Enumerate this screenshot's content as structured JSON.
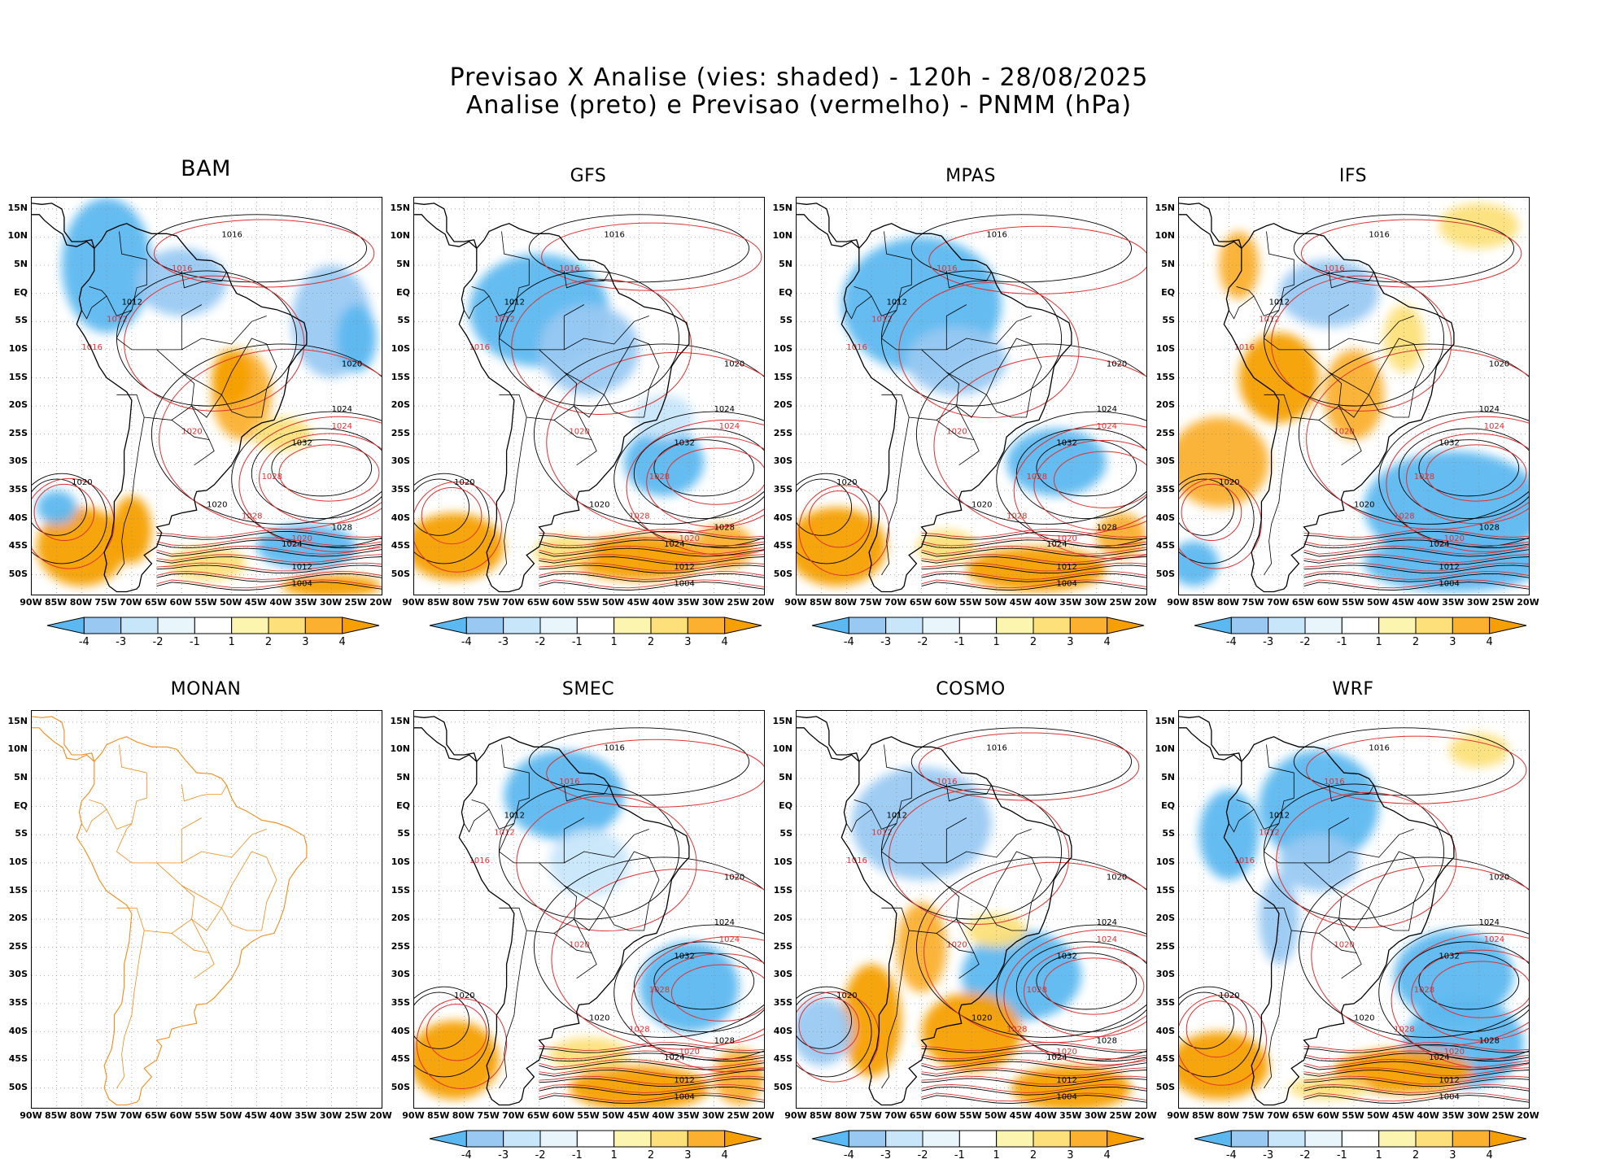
{
  "title": {
    "line1": "Previsao X Analise (vies: shaded) - 120h - 28/08/2025",
    "line2": "Analise (preto) e Previsao (vermelho) - PNMM (hPa)"
  },
  "panels": [
    {
      "name": "BAM",
      "pattern": "bam",
      "empty": false
    },
    {
      "name": "GFS",
      "pattern": "gfs",
      "empty": false
    },
    {
      "name": "MPAS",
      "pattern": "mpas",
      "empty": false
    },
    {
      "name": "IFS",
      "pattern": "ifs",
      "empty": false
    },
    {
      "name": "MONAN",
      "pattern": "none",
      "empty": true
    },
    {
      "name": "SMEC",
      "pattern": "smec",
      "empty": false
    },
    {
      "name": "COSMO",
      "pattern": "cosmo",
      "empty": false
    },
    {
      "name": "WRF",
      "pattern": "wrf",
      "empty": false
    }
  ],
  "lat_labels": [
    "15N",
    "10N",
    "5N",
    "EQ",
    "5S",
    "10S",
    "15S",
    "20S",
    "25S",
    "30S",
    "35S",
    "40S",
    "45S",
    "50S"
  ],
  "lon_labels": [
    "90W",
    "85W",
    "80W",
    "75W",
    "70W",
    "65W",
    "60W",
    "55W",
    "50W",
    "45W",
    "40W",
    "35W",
    "30W",
    "25W",
    "20W"
  ],
  "colorbar": {
    "labels": [
      "-4",
      "-3",
      "-2",
      "-1",
      "1",
      "2",
      "3",
      "4"
    ],
    "colors": [
      "#5cb8f0",
      "#99c9f2",
      "#c8e6fa",
      "#e8f6fc",
      "#ffffff",
      "#fbf5b0",
      "#fde07a",
      "#fbb030",
      "#f5a000"
    ]
  },
  "isobar_labels_analysis": [
    "1012",
    "1016",
    "1020",
    "1024",
    "1028",
    "1032",
    "1004"
  ],
  "isobar_labels_forecast": [
    "1012",
    "1016",
    "1020",
    "1024",
    "1028"
  ],
  "colors": {
    "analysis_contour": "#000000",
    "forecast_contour": "#e03030",
    "coastline": "#000000",
    "coastline_empty": "#f08c1a",
    "grid": "#888888"
  }
}
